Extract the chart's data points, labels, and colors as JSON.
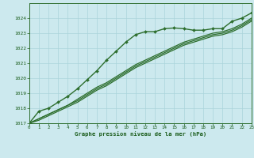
{
  "title": "Graphe pression niveau de la mer (hPa)",
  "background_color": "#cce9ee",
  "grid_color": "#aad4da",
  "line_color": "#2d6e2d",
  "text_color": "#1a5c1a",
  "xmin": 0,
  "xmax": 23,
  "ymin": 1017,
  "ymax": 1025,
  "yticks": [
    1017,
    1018,
    1019,
    1020,
    1021,
    1022,
    1023,
    1024
  ],
  "xticks": [
    0,
    1,
    2,
    3,
    4,
    5,
    6,
    7,
    8,
    9,
    10,
    11,
    12,
    13,
    14,
    15,
    16,
    17,
    18,
    19,
    20,
    21,
    22,
    23
  ],
  "series_main": [
    1017.0,
    1017.8,
    1018.0,
    1018.4,
    1018.8,
    1019.3,
    1019.9,
    1020.5,
    1021.2,
    1021.8,
    1022.4,
    1022.9,
    1023.1,
    1023.1,
    1023.3,
    1023.35,
    1023.3,
    1023.2,
    1023.2,
    1023.3,
    1023.3,
    1023.8,
    1024.0,
    1024.35
  ],
  "series_others": [
    [
      1017.0,
      1017.3,
      1017.6,
      1017.9,
      1018.2,
      1018.6,
      1019.0,
      1019.4,
      1019.7,
      1020.1,
      1020.5,
      1020.9,
      1021.2,
      1021.5,
      1021.8,
      1022.1,
      1022.4,
      1022.6,
      1022.8,
      1023.0,
      1023.1,
      1023.3,
      1023.6,
      1024.0
    ],
    [
      1017.0,
      1017.3,
      1017.6,
      1017.9,
      1018.2,
      1018.5,
      1018.9,
      1019.3,
      1019.6,
      1020.0,
      1020.4,
      1020.8,
      1021.1,
      1021.4,
      1021.7,
      1022.0,
      1022.3,
      1022.5,
      1022.7,
      1022.9,
      1023.0,
      1023.2,
      1023.5,
      1023.9
    ],
    [
      1017.0,
      1017.2,
      1017.5,
      1017.8,
      1018.1,
      1018.4,
      1018.8,
      1019.2,
      1019.5,
      1019.9,
      1020.3,
      1020.7,
      1021.0,
      1021.3,
      1021.6,
      1021.9,
      1022.2,
      1022.4,
      1022.6,
      1022.8,
      1022.9,
      1023.1,
      1023.4,
      1023.8
    ]
  ]
}
